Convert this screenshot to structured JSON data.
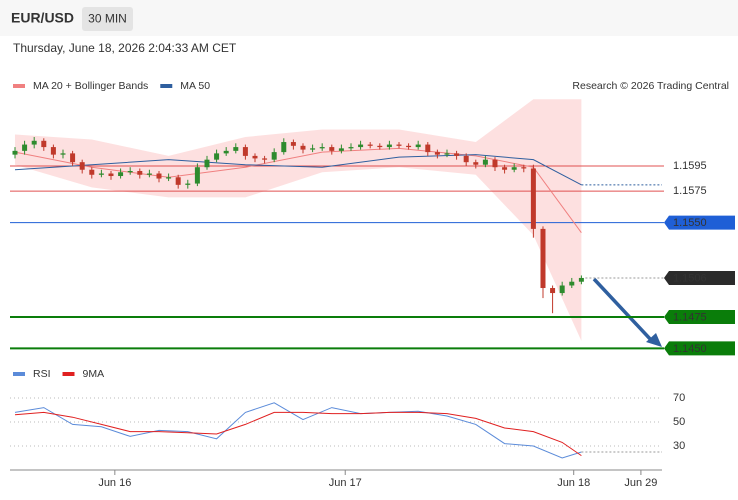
{
  "header": {
    "symbol": "EUR/USD",
    "interval": "30 MIN",
    "datetime": "Thursday, June 18, 2026 2:04:33 AM CET"
  },
  "chart_data": [
    {
      "type": "candlestick",
      "source": "Research © 2026 Trading Central",
      "xlim": [
        -0.52,
        67.71
      ],
      "xticks": [
        {
          "value": 10.4,
          "label": "Jun 16"
        },
        {
          "value": 34.4,
          "label": "Jun 17"
        },
        {
          "value": 58.2,
          "label": "Jun 18"
        },
        {
          "value": 65.2,
          "label": "Jun 29"
        }
      ],
      "ylim": [
        1.144,
        1.168
      ],
      "up_color": "#2e8b2e",
      "down_color": "#c0392b",
      "candles": [
        [
          1.1604,
          1.161,
          1.1601,
          1.1607
        ],
        [
          1.1607,
          1.1615,
          1.1604,
          1.1612
        ],
        [
          1.1612,
          1.1618,
          1.1609,
          1.1615
        ],
        [
          1.1615,
          1.1617,
          1.1607,
          1.161
        ],
        [
          1.161,
          1.1612,
          1.1601,
          1.1604
        ],
        [
          1.1604,
          1.1608,
          1.1601,
          1.1605
        ],
        [
          1.1605,
          1.1607,
          1.1595,
          1.1598
        ],
        [
          1.1598,
          1.16,
          1.1589,
          1.1592
        ],
        [
          1.1592,
          1.1594,
          1.1585,
          1.1588
        ],
        [
          1.1588,
          1.1592,
          1.1586,
          1.1589
        ],
        [
          1.1589,
          1.1591,
          1.1584,
          1.1587
        ],
        [
          1.1587,
          1.1593,
          1.1585,
          1.159
        ],
        [
          1.159,
          1.1594,
          1.1588,
          1.1591
        ],
        [
          1.1591,
          1.1593,
          1.1585,
          1.1588
        ],
        [
          1.1588,
          1.1592,
          1.1586,
          1.1589
        ],
        [
          1.1589,
          1.1591,
          1.1582,
          1.1585
        ],
        [
          1.1585,
          1.1589,
          1.1583,
          1.1586
        ],
        [
          1.1586,
          1.1588,
          1.1577,
          1.158
        ],
        [
          1.158,
          1.1584,
          1.1577,
          1.1581
        ],
        [
          1.1581,
          1.1597,
          1.1579,
          1.1594
        ],
        [
          1.1594,
          1.1603,
          1.1592,
          1.16
        ],
        [
          1.16,
          1.1608,
          1.1598,
          1.1605
        ],
        [
          1.1605,
          1.161,
          1.1603,
          1.1607
        ],
        [
          1.1607,
          1.1613,
          1.1605,
          1.161
        ],
        [
          1.161,
          1.1612,
          1.16,
          1.1603
        ],
        [
          1.1603,
          1.1605,
          1.1598,
          1.1601
        ],
        [
          1.1601,
          1.1603,
          1.1597,
          1.16
        ],
        [
          1.16,
          1.1609,
          1.1598,
          1.1606
        ],
        [
          1.1606,
          1.1617,
          1.1604,
          1.1614
        ],
        [
          1.1614,
          1.1616,
          1.1608,
          1.1611
        ],
        [
          1.1611,
          1.1613,
          1.1605,
          1.1608
        ],
        [
          1.1608,
          1.1612,
          1.1606,
          1.1609
        ],
        [
          1.1609,
          1.1613,
          1.1607,
          1.161
        ],
        [
          1.161,
          1.1612,
          1.1604,
          1.1607
        ],
        [
          1.1607,
          1.1612,
          1.1605,
          1.1609
        ],
        [
          1.1609,
          1.1613,
          1.1607,
          1.161
        ],
        [
          1.161,
          1.1615,
          1.1608,
          1.1612
        ],
        [
          1.1612,
          1.1614,
          1.1609,
          1.1611
        ],
        [
          1.1611,
          1.1613,
          1.1608,
          1.161
        ],
        [
          1.161,
          1.1615,
          1.1608,
          1.1612
        ],
        [
          1.1612,
          1.1614,
          1.1609,
          1.1611
        ],
        [
          1.1611,
          1.1613,
          1.1608,
          1.161
        ],
        [
          1.161,
          1.1615,
          1.1608,
          1.1612
        ],
        [
          1.1612,
          1.1614,
          1.1603,
          1.1606
        ],
        [
          1.1606,
          1.1608,
          1.1601,
          1.1604
        ],
        [
          1.1604,
          1.1608,
          1.1602,
          1.1605
        ],
        [
          1.1605,
          1.1607,
          1.16,
          1.1603
        ],
        [
          1.1603,
          1.1605,
          1.1595,
          1.1598
        ],
        [
          1.1598,
          1.16,
          1.1593,
          1.1596
        ],
        [
          1.1596,
          1.1603,
          1.1594,
          1.16
        ],
        [
          1.16,
          1.1602,
          1.1591,
          1.1594
        ],
        [
          1.1594,
          1.1596,
          1.1589,
          1.1592
        ],
        [
          1.1592,
          1.1597,
          1.159,
          1.1594
        ],
        [
          1.1594,
          1.1596,
          1.159,
          1.1593
        ],
        [
          1.1593,
          1.1596,
          1.1538,
          1.1545
        ],
        [
          1.1545,
          1.1547,
          1.149,
          1.1498
        ],
        [
          1.1498,
          1.15,
          1.1478,
          1.1494
        ],
        [
          1.1494,
          1.1503,
          1.1492,
          1.15
        ],
        [
          1.15,
          1.1506,
          1.1498,
          1.1503
        ],
        [
          1.1503,
          1.1508,
          1.1501,
          1.1506
        ]
      ],
      "series_x": [
        0,
        8,
        16,
        24,
        32,
        40,
        48,
        54,
        59
      ],
      "series": [
        {
          "name": "MA 20 + Bollinger Bands",
          "color": "#f08080",
          "band_color": "#fcd5d5",
          "values": [
            1.1606,
            1.1594,
            1.1586,
            1.1594,
            1.1606,
            1.1609,
            1.1603,
            1.1594,
            1.1542
          ],
          "upper": [
            1.162,
            1.1616,
            1.1603,
            1.1618,
            1.1624,
            1.1624,
            1.1614,
            1.1648,
            1.1648
          ],
          "lower": [
            1.1596,
            1.1578,
            1.157,
            1.157,
            1.159,
            1.1594,
            1.1588,
            1.154,
            1.1456
          ]
        },
        {
          "name": "MA 50",
          "color": "#2f5f9f",
          "values": [
            1.1592,
            1.1596,
            1.16,
            1.1596,
            1.1594,
            1.1602,
            1.1604,
            1.16,
            1.158
          ]
        }
      ],
      "levels": [
        {
          "value": 1.1595,
          "color": "#e05050",
          "style": "plain"
        },
        {
          "value": 1.1575,
          "color": "#e05050",
          "style": "plain"
        },
        {
          "value": 1.155,
          "label": "1.1550",
          "color": "#1f5fd6",
          "style": "box"
        },
        {
          "value": 1.1506,
          "color": "#2b2b2b",
          "style": "dotted"
        },
        {
          "value": 1.1475,
          "color": "#0a7d0a",
          "style": "box"
        },
        {
          "value": 1.145,
          "label": "1.1450",
          "color": "#0a7d0a",
          "style": "box"
        }
      ]
    },
    {
      "type": "line",
      "ylim": [
        10,
        100
      ],
      "yticks": [
        30,
        50,
        70
      ],
      "x": [
        0,
        3,
        6,
        9,
        12,
        15,
        18,
        21,
        24,
        27,
        30,
        33,
        36,
        39,
        42,
        45,
        48,
        51,
        54,
        57,
        59
      ],
      "series": [
        {
          "name": "RSI",
          "color": "#5b8bd9",
          "values": [
            58,
            62,
            48,
            46,
            38,
            43,
            42,
            36,
            58,
            66,
            52,
            62,
            57,
            58,
            59,
            55,
            48,
            32,
            30,
            20,
            25
          ]
        },
        {
          "name": "9MA",
          "color": "#e02020",
          "values": [
            56,
            58,
            54,
            48,
            42,
            42,
            41,
            40,
            48,
            58,
            58,
            57,
            57,
            58,
            58,
            57,
            53,
            45,
            42,
            33,
            22
          ]
        }
      ]
    }
  ]
}
